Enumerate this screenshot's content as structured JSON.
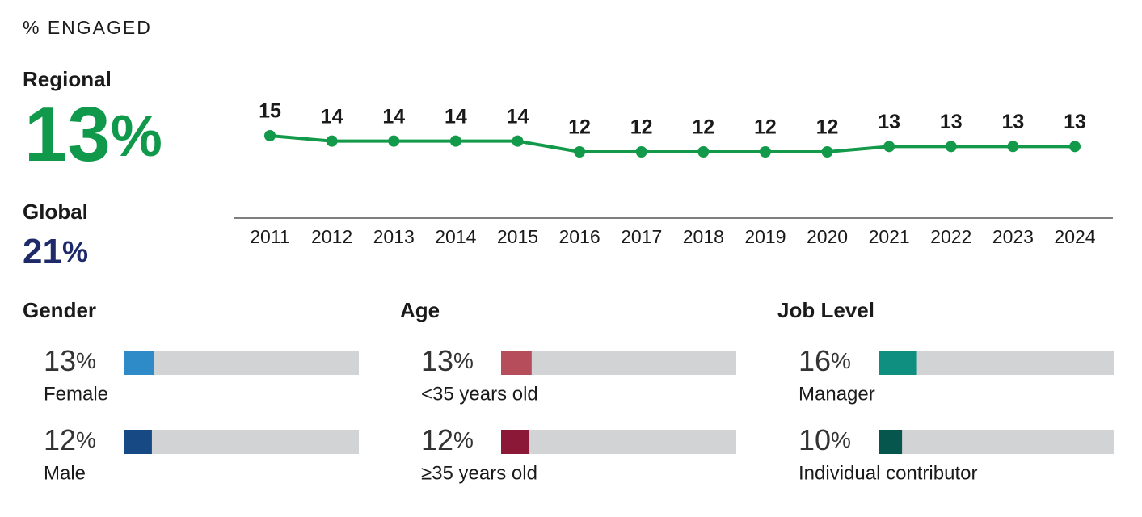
{
  "title": "% ENGAGED",
  "summary": [
    {
      "label": "Regional",
      "value": 13,
      "unit": "%",
      "color": "#11994b"
    },
    {
      "label": "Global",
      "value": 21,
      "unit": "%",
      "color": "#1e2a6a"
    }
  ],
  "chart_data": [
    {
      "type": "line",
      "categories": [
        "2011",
        "2012",
        "2013",
        "2014",
        "2015",
        "2016",
        "2017",
        "2018",
        "2019",
        "2020",
        "2021",
        "2022",
        "2023",
        "2024"
      ],
      "values": [
        15,
        14,
        14,
        14,
        14,
        12,
        12,
        12,
        12,
        12,
        13,
        13,
        13,
        13
      ],
      "color": "#13994a",
      "ylim": [
        0,
        30
      ]
    },
    {
      "type": "bar",
      "title": "Gender",
      "categories": [
        "Female",
        "Male"
      ],
      "values": [
        13,
        12
      ],
      "unit": "%",
      "colors": [
        "#2f8ac8",
        "#174985"
      ],
      "track_color": "#d1d3d5",
      "xlim": [
        0,
        100
      ]
    },
    {
      "type": "bar",
      "title": "Age",
      "categories": [
        "<35 years old",
        "≥35 years old"
      ],
      "values": [
        13,
        12
      ],
      "unit": "%",
      "colors": [
        "#b54d5b",
        "#8c1838"
      ],
      "track_color": "#d1d3d5",
      "xlim": [
        0,
        100
      ]
    },
    {
      "type": "bar",
      "title": "Job Level",
      "categories": [
        "Manager",
        "Individual contributor"
      ],
      "values": [
        16,
        10
      ],
      "unit": "%",
      "colors": [
        "#0e8f7f",
        "#07564d"
      ],
      "track_color": "#d1d3d5",
      "xlim": [
        0,
        100
      ]
    }
  ]
}
